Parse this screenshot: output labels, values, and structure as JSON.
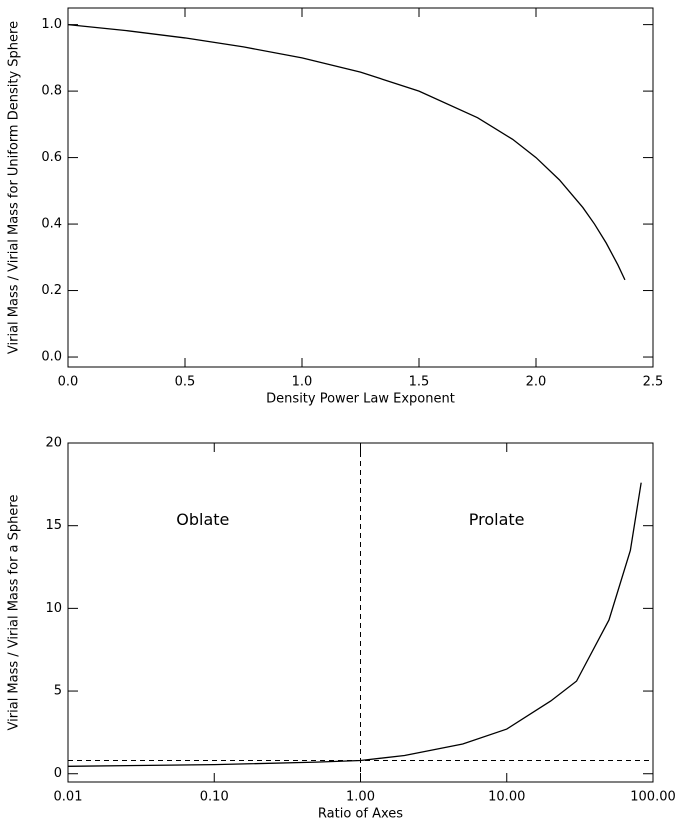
{
  "chart_data": [
    {
      "type": "line",
      "x_label": "Density Power Law Exponent",
      "y_label": "Virial Mass / Virial Mass for Uniform Density Sphere",
      "x": [
        0,
        0.25,
        0.5,
        0.75,
        1.0,
        1.25,
        1.5,
        1.75,
        1.9,
        2.0,
        2.1,
        2.2,
        2.25,
        2.3,
        2.35,
        2.38
      ],
      "values": [
        1.0,
        0.982,
        0.96,
        0.933,
        0.9,
        0.857,
        0.8,
        0.72,
        0.655,
        0.6,
        0.533,
        0.45,
        0.4,
        0.343,
        0.277,
        0.232
      ],
      "color": "#000000",
      "xlim": [
        0,
        2.5
      ],
      "ylim": [
        -0.03,
        1.05
      ],
      "xticks": [
        {
          "value": 0,
          "label": "0.0"
        },
        0.5,
        {
          "value": 1,
          "label": "1.0"
        },
        1.5,
        {
          "value": 2,
          "label": "2.0"
        },
        2.5
      ],
      "yticks": [
        {
          "value": 0,
          "label": "0.0"
        },
        0.2,
        0.4,
        0.6,
        0.8,
        {
          "value": 1,
          "label": "1.0"
        }
      ]
    },
    {
      "type": "line",
      "x_label": "Ratio of Axes",
      "y_label": "Virial Mass / Virial Mass for a Sphere",
      "annotations": [
        "Oblate",
        "Prolate"
      ],
      "x": [
        0.01,
        0.1,
        0.5,
        1,
        2,
        5,
        10,
        20,
        30,
        50,
        70,
        83
      ],
      "values": [
        0.45,
        0.55,
        0.7,
        0.8,
        1.1,
        1.8,
        2.7,
        4.4,
        5.6,
        9.3,
        13.5,
        17.6
      ],
      "color": "#000000",
      "xlog": true,
      "hlines": [
        0.8
      ],
      "vlines": [
        1
      ],
      "xlim": [
        0.01,
        100
      ],
      "ylim": [
        -0.5,
        20
      ],
      "xticks": [
        0.01,
        {
          "value": 0.1,
          "label": "0.10"
        },
        {
          "value": 1,
          "label": "1.00"
        },
        {
          "value": 10,
          "label": "10.00"
        },
        {
          "value": 100,
          "label": "100.00"
        }
      ],
      "yticks": [
        0,
        5,
        10,
        15,
        20
      ]
    }
  ]
}
